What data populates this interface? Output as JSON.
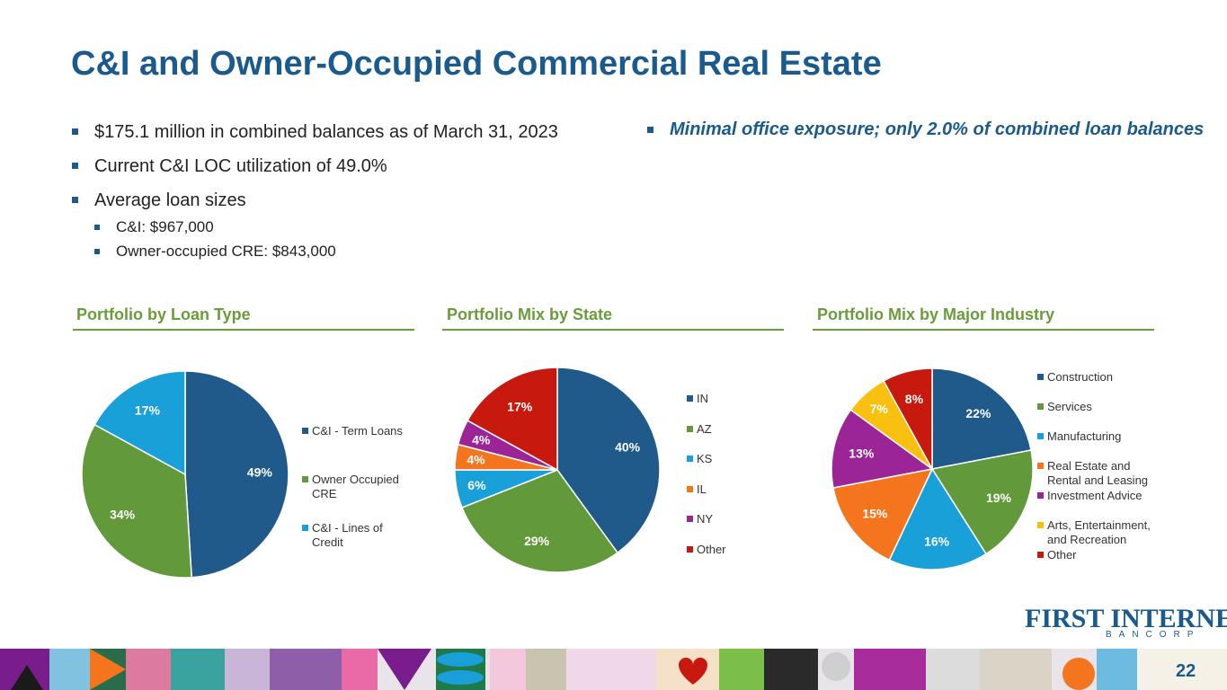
{
  "title": "C&I and Owner-Occupied Commercial Real Estate",
  "bullets": {
    "b1": "$175.1 million in combined balances as of March 31, 2023",
    "b2": "Current C&I LOC utilization of 49.0%",
    "b3": "Average loan sizes",
    "b3a": "C&I: $967,000",
    "b3b": "Owner-occupied CRE: $843,000",
    "right": "Minimal office exposure; only 2.0% of combined loan balances"
  },
  "logo": {
    "main": "FIRST INTERNET",
    "sub": "BANCORP"
  },
  "page_number": "22",
  "colors": {
    "title": "#1a5a8c",
    "section": "#6a9c3c",
    "navy": "#1f5a8a",
    "green": "#62993a",
    "cyan": "#1aa0d8",
    "orange": "#f5751f",
    "purple": "#9b2596",
    "yellow": "#fac010",
    "red": "#c8190e"
  },
  "chart_data": [
    {
      "type": "pie",
      "title": "Portfolio by Loan Type",
      "labels": [
        "C&I - Term Loans",
        "Owner Occupied CRE",
        "C&I - Lines of Credit"
      ],
      "values": [
        49,
        34,
        17
      ],
      "value_labels": [
        "49%",
        "34%",
        "17%"
      ],
      "colors": [
        "#1f5a8a",
        "#62993a",
        "#1aa0d8"
      ],
      "legend": "right"
    },
    {
      "type": "pie",
      "title": "Portfolio Mix by State",
      "labels": [
        "IN",
        "AZ",
        "KS",
        "IL",
        "NY",
        "Other"
      ],
      "values": [
        40,
        29,
        6,
        4,
        4,
        17
      ],
      "value_labels": [
        "40%",
        "29%",
        "6%",
        "4%",
        "4%",
        "17%"
      ],
      "colors": [
        "#1f5a8a",
        "#62993a",
        "#1aa0d8",
        "#f5751f",
        "#9b2596",
        "#c8190e"
      ],
      "legend": "right"
    },
    {
      "type": "pie",
      "title": "Portfolio Mix by Major Industry",
      "labels": [
        "Construction",
        "Services",
        "Manufacturing",
        "Real Estate and Rental and Leasing",
        "Investment Advice",
        "Arts, Entertainment, and Recreation",
        "Other"
      ],
      "values": [
        22,
        19,
        16,
        15,
        13,
        7,
        8
      ],
      "value_labels": [
        "22%",
        "19%",
        "16%",
        "15%",
        "13%",
        "7%",
        "8%"
      ],
      "colors": [
        "#1f5a8a",
        "#62993a",
        "#1aa0d8",
        "#f5751f",
        "#9b2596",
        "#fac010",
        "#c8190e"
      ],
      "legend": "right"
    }
  ]
}
